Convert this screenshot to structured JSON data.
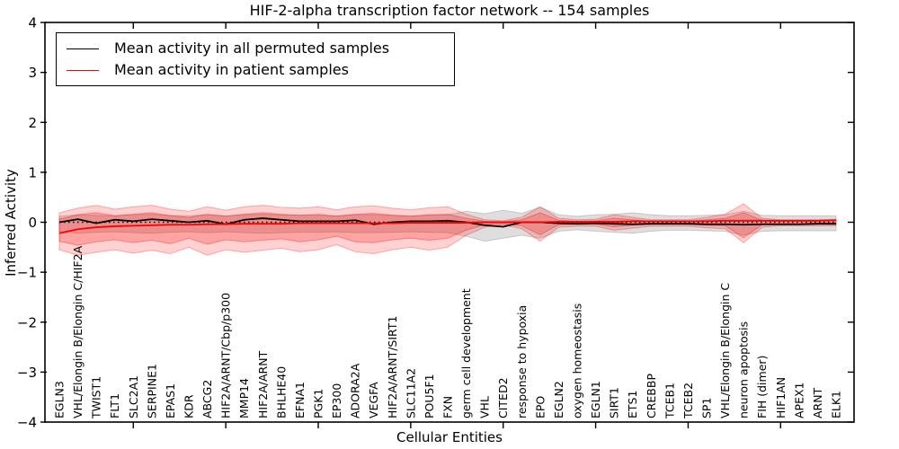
{
  "figure": {
    "title": "HIF-2-alpha transcription factor network -- 154 samples"
  },
  "axes": {
    "xlabel": "Cellular Entities",
    "ylabel": "Inferred Activity"
  },
  "legend": {
    "position": "upper left",
    "entries": [
      {
        "label": "Mean activity in all permuted samples",
        "color": "#000000"
      },
      {
        "label": "Mean activity in patient samples",
        "color": "#ff0000"
      }
    ]
  },
  "chart_data": {
    "type": "line",
    "title": "HIF-2-alpha transcription factor network -- 154 samples",
    "xlabel": "Cellular Entities",
    "ylabel": "Inferred Activity",
    "ylim": [
      -4,
      4
    ],
    "ytick_labels": [
      "4",
      "3",
      "2",
      "1",
      "0",
      "−1",
      "−2",
      "−3",
      "−4"
    ],
    "ytick_values": [
      4,
      3,
      2,
      1,
      0,
      -1,
      -2,
      -3,
      -4
    ],
    "grid": false,
    "categories": [
      "EGLN3",
      "VHL/Elongin B/Elongin C/HIF2A",
      "TWIST1",
      "FLT1",
      "SLC2A1",
      "SERPINE1",
      "EPAS1",
      "KDR",
      "ABCG2",
      "HIF2A/ARNT/Cbp/p300",
      "MMP14",
      "HIF2A/ARNT",
      "BHLHE40",
      "EFNA1",
      "PGK1",
      "EP300",
      "ADORA2A",
      "VEGFA",
      "HIF2A/ARNT/SIRT1",
      "SLC11A2",
      "POU5F1",
      "FXN",
      "germ cell development",
      "VHL",
      "CITED2",
      "response to hypoxia",
      "EPO",
      "EGLN2",
      "oxygen homeostasis",
      "EGLN1",
      "SIRT1",
      "ETS1",
      "CREBBP",
      "TCEB1",
      "TCEB2",
      "SP1",
      "VHL/Elongin B/Elongin C",
      "neuron apoptosis",
      "FIH (dimer)",
      "HIF1AN",
      "APEX1",
      "ARNT",
      "ELK1"
    ],
    "series": [
      {
        "name": "Mean activity in all permuted samples",
        "color": "#000000",
        "values": [
          0.0,
          0.06,
          -0.02,
          0.05,
          0.02,
          0.06,
          0.03,
          0.0,
          0.03,
          -0.04,
          0.05,
          0.08,
          0.05,
          0.02,
          0.02,
          0.02,
          0.04,
          -0.04,
          0.0,
          0.02,
          0.02,
          0.03,
          0.0,
          -0.06,
          -0.09,
          0.0,
          0.0,
          -0.02,
          -0.03,
          -0.02,
          -0.03,
          -0.04,
          -0.03,
          -0.03,
          -0.03,
          -0.04,
          -0.04,
          -0.05,
          -0.04,
          -0.04,
          -0.04,
          -0.03,
          -0.03
        ]
      },
      {
        "name": "Mean activity in patient samples",
        "color": "#ff0000",
        "values": [
          -0.22,
          -0.14,
          -0.1,
          -0.08,
          -0.07,
          -0.06,
          -0.05,
          -0.05,
          -0.04,
          -0.04,
          -0.03,
          -0.03,
          -0.03,
          -0.02,
          -0.02,
          -0.02,
          -0.02,
          -0.02,
          -0.02,
          -0.01,
          -0.01,
          -0.01,
          -0.01,
          0.0,
          0.0,
          0.0,
          0.0,
          0.01,
          0.01,
          0.01,
          0.01,
          0.02,
          0.02,
          0.02,
          0.02,
          0.02,
          0.03,
          0.03,
          0.03,
          0.03,
          0.03,
          0.03,
          0.04
        ]
      }
    ],
    "bands": [
      {
        "name": "permuted-samples-std-band",
        "color": "#999999",
        "opacity": 0.32,
        "upper": [
          0.12,
          0.15,
          0.14,
          0.13,
          0.15,
          0.16,
          0.14,
          0.13,
          0.15,
          0.13,
          0.15,
          0.16,
          0.15,
          0.14,
          0.14,
          0.13,
          0.15,
          0.15,
          0.14,
          0.13,
          0.14,
          0.15,
          0.22,
          0.17,
          0.24,
          0.18,
          0.3,
          0.15,
          0.12,
          0.15,
          0.16,
          0.19,
          0.15,
          0.13,
          0.13,
          0.14,
          0.15,
          0.22,
          0.14,
          0.13,
          0.13,
          0.13,
          0.13
        ],
        "lower": [
          -0.18,
          -0.22,
          -0.2,
          -0.19,
          -0.21,
          -0.22,
          -0.2,
          -0.19,
          -0.21,
          -0.19,
          -0.21,
          -0.22,
          -0.21,
          -0.2,
          -0.2,
          -0.19,
          -0.21,
          -0.21,
          -0.2,
          -0.19,
          -0.2,
          -0.21,
          -0.28,
          -0.38,
          -0.32,
          -0.26,
          -0.32,
          -0.18,
          -0.15,
          -0.18,
          -0.2,
          -0.22,
          -0.18,
          -0.16,
          -0.16,
          -0.17,
          -0.18,
          -0.26,
          -0.18,
          -0.17,
          -0.17,
          -0.17,
          -0.17
        ]
      },
      {
        "name": "patient-samples-outer-band",
        "color": "#ff0000",
        "opacity": 0.18,
        "upper": [
          0.19,
          0.28,
          0.34,
          0.26,
          0.31,
          0.34,
          0.26,
          0.22,
          0.31,
          0.24,
          0.31,
          0.34,
          0.3,
          0.28,
          0.31,
          0.25,
          0.31,
          0.33,
          0.28,
          0.25,
          0.29,
          0.31,
          0.16,
          0.05,
          0.03,
          0.1,
          0.31,
          0.08,
          0.05,
          0.06,
          0.15,
          0.1,
          0.05,
          0.05,
          0.05,
          0.1,
          0.16,
          0.37,
          0.08,
          0.05,
          0.05,
          0.05,
          0.06
        ],
        "lower": [
          -0.55,
          -0.66,
          -0.6,
          -0.55,
          -0.62,
          -0.56,
          -0.63,
          -0.5,
          -0.66,
          -0.55,
          -0.6,
          -0.56,
          -0.52,
          -0.59,
          -0.55,
          -0.45,
          -0.59,
          -0.63,
          -0.55,
          -0.5,
          -0.56,
          -0.5,
          -0.26,
          -0.1,
          -0.05,
          -0.13,
          -0.38,
          -0.1,
          -0.08,
          -0.08,
          -0.16,
          -0.12,
          -0.08,
          -0.08,
          -0.08,
          -0.11,
          -0.13,
          -0.41,
          -0.1,
          -0.07,
          -0.07,
          -0.07,
          -0.07
        ]
      },
      {
        "name": "patient-samples-inner-band",
        "color": "#ff0000",
        "opacity": 0.22,
        "upper": [
          0.06,
          0.15,
          0.19,
          0.13,
          0.16,
          0.19,
          0.13,
          0.1,
          0.16,
          0.12,
          0.16,
          0.19,
          0.16,
          0.14,
          0.16,
          0.12,
          0.16,
          0.18,
          0.14,
          0.12,
          0.15,
          0.16,
          0.08,
          0.02,
          0.01,
          0.05,
          0.19,
          0.04,
          0.02,
          0.03,
          0.08,
          0.05,
          0.02,
          0.02,
          0.02,
          0.05,
          0.08,
          0.19,
          0.04,
          0.02,
          0.02,
          0.02,
          0.03
        ],
        "lower": [
          -0.38,
          -0.46,
          -0.39,
          -0.35,
          -0.41,
          -0.36,
          -0.43,
          -0.32,
          -0.44,
          -0.35,
          -0.39,
          -0.36,
          -0.33,
          -0.39,
          -0.35,
          -0.28,
          -0.39,
          -0.41,
          -0.35,
          -0.32,
          -0.36,
          -0.32,
          -0.16,
          -0.05,
          -0.03,
          -0.07,
          -0.25,
          -0.05,
          -0.04,
          -0.04,
          -0.09,
          -0.06,
          -0.04,
          -0.04,
          -0.04,
          -0.06,
          -0.07,
          -0.31,
          -0.05,
          -0.04,
          -0.04,
          -0.04,
          -0.04
        ]
      }
    ],
    "reference_line": {
      "y": 0,
      "style": "dotted",
      "color": "#000000"
    },
    "layout": {
      "legend_position": "upper left",
      "grid": false,
      "major_x_tick_indices": [
        4,
        9,
        14,
        19,
        24,
        29,
        34,
        39
      ]
    }
  }
}
